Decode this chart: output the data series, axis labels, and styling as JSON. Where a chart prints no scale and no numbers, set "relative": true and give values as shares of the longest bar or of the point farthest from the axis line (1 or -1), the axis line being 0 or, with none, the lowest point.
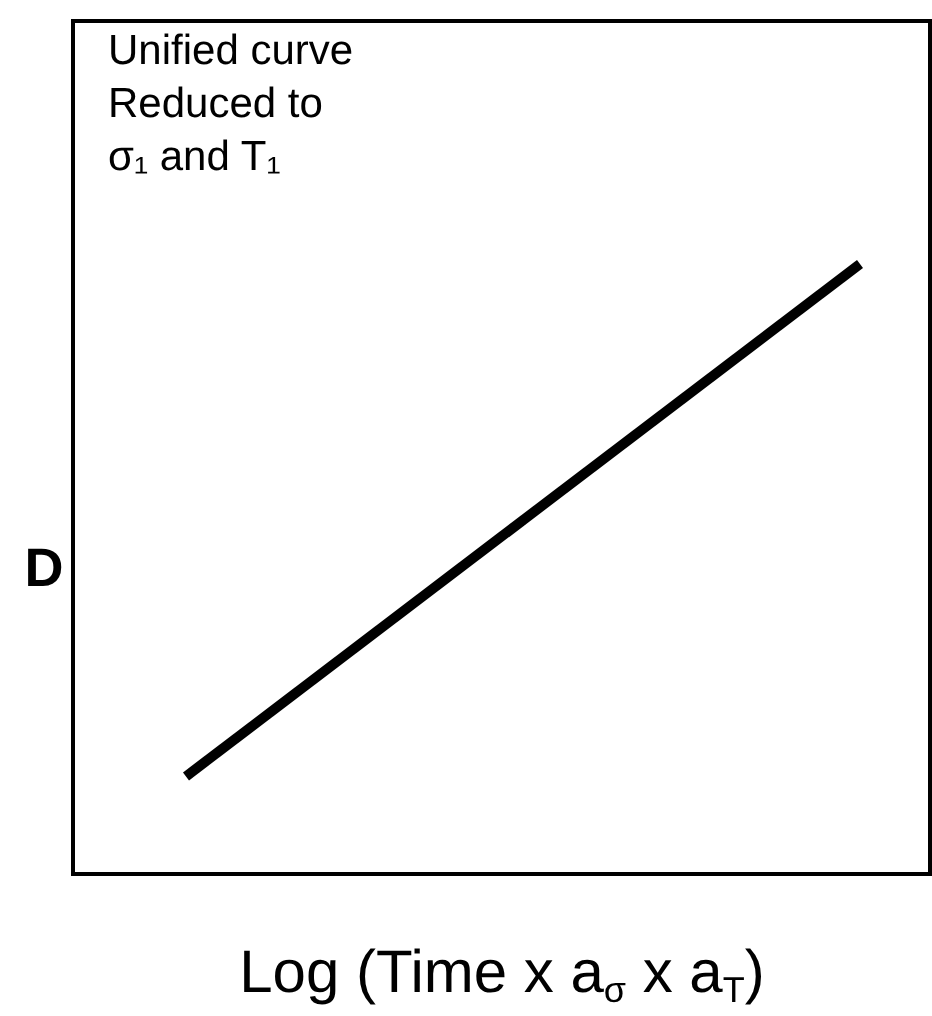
{
  "chart_data": {
    "type": "line",
    "relative": true,
    "xlabel": "Log (Time x a$_{σ}$ x a$_{T}$)",
    "ylabel": "D",
    "categories": [
      null,
      null
    ],
    "series": [
      {
        "color": "#000000",
        "values": [
          0.16,
          1
        ]
      }
    ],
    "annotations": [
      "Unified curve\nReduced to\nσ₁ and T₁"
    ]
  }
}
